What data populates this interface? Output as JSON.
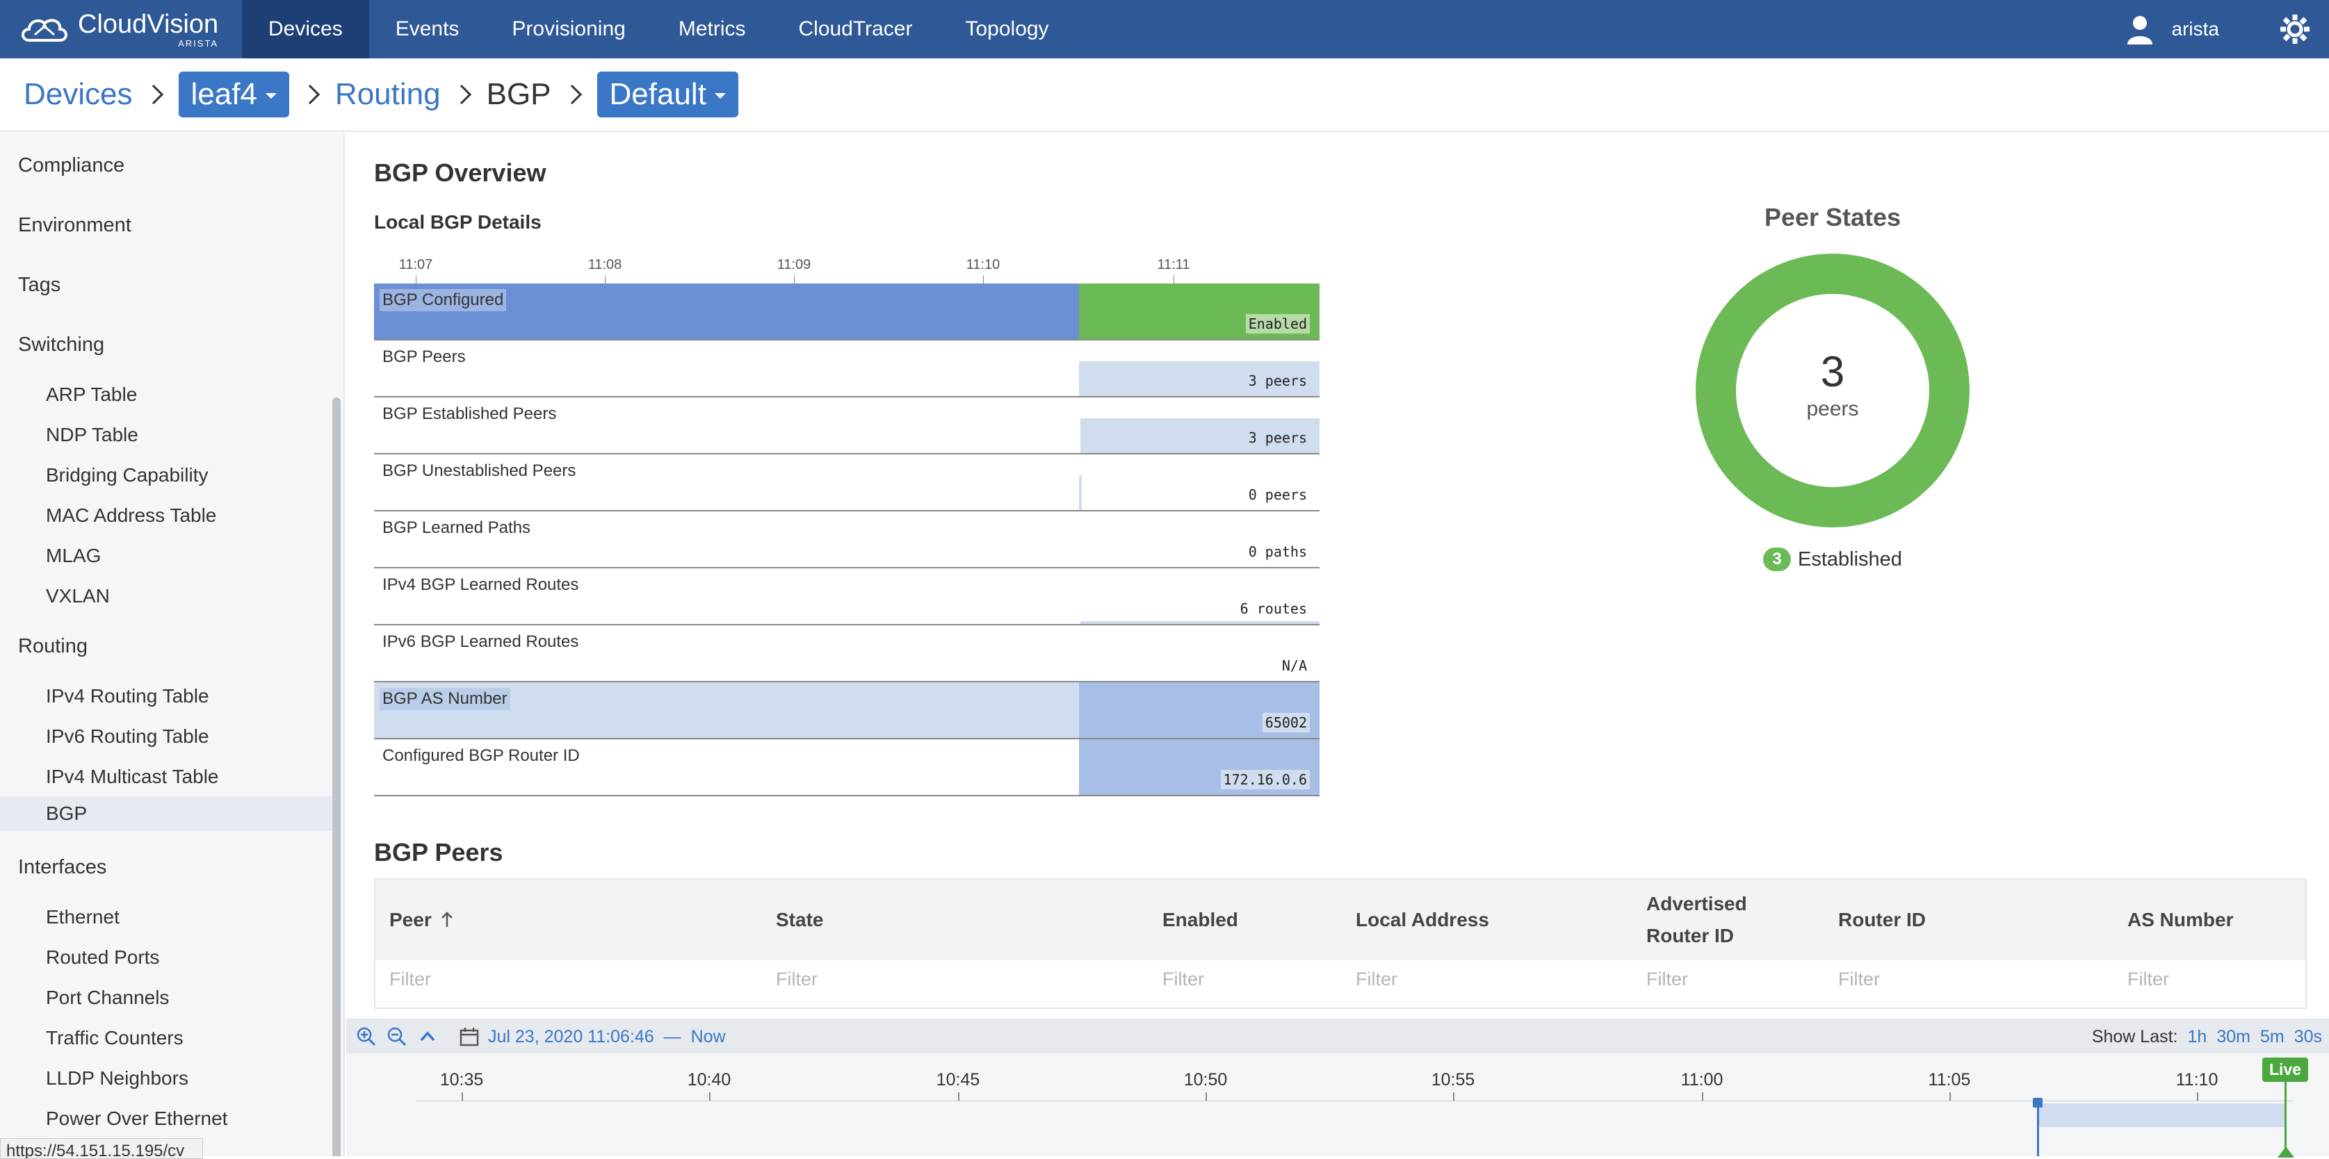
{
  "app": {
    "name": "CloudVision",
    "vendor": "ARISTA"
  },
  "nav": {
    "tabs": [
      "Devices",
      "Events",
      "Provisioning",
      "Metrics",
      "CloudTracer",
      "Topology"
    ],
    "active": "Devices",
    "user": "arista"
  },
  "breadcrumb": {
    "devices": "Devices",
    "device": "leaf4",
    "routing": "Routing",
    "bgp": "BGP",
    "vrf": "Default"
  },
  "sidebar": {
    "sections": [
      {
        "label": "Compliance"
      },
      {
        "label": "Environment"
      },
      {
        "label": "Tags"
      },
      {
        "label": "Switching",
        "items": [
          "ARP Table",
          "NDP Table",
          "Bridging Capability",
          "MAC Address Table",
          "MLAG",
          "VXLAN"
        ]
      },
      {
        "label": "Routing",
        "items": [
          "IPv4 Routing Table",
          "IPv6 Routing Table",
          "IPv4 Multicast Table",
          "BGP"
        ]
      },
      {
        "label": "Interfaces",
        "items": [
          "Ethernet",
          "Routed Ports",
          "Port Channels",
          "Traffic Counters",
          "LLDP Neighbors",
          "Power Over Ethernet"
        ]
      }
    ],
    "active_item": "BGP",
    "url_tooltip": "https://54.151.15.195/cv"
  },
  "overview": {
    "title": "BGP Overview",
    "local_title": "Local BGP Details",
    "time_ticks": [
      "11:07",
      "11:08",
      "11:09",
      "11:10",
      "11:11"
    ],
    "rows": [
      {
        "label": "BGP Configured",
        "value": "Enabled"
      },
      {
        "label": "BGP Peers",
        "value": "3 peers"
      },
      {
        "label": "BGP Established Peers",
        "value": "3 peers"
      },
      {
        "label": "BGP Unestablished Peers",
        "value": "0 peers"
      },
      {
        "label": "BGP Learned Paths",
        "value": "0 paths"
      },
      {
        "label": "IPv4 BGP Learned Routes",
        "value": "6 routes"
      },
      {
        "label": "IPv6 BGP Learned Routes",
        "value": "N/A"
      },
      {
        "label": "BGP AS Number",
        "value": "65002"
      },
      {
        "label": "Configured BGP Router ID",
        "value": "172.16.0.6"
      }
    ]
  },
  "peer_states": {
    "title": "Peer States",
    "count": "3",
    "unit": "peers",
    "legend_count": "3",
    "legend_label": "Established",
    "color": "#6cba55"
  },
  "peers_table": {
    "title": "BGP Peers",
    "columns": [
      "Peer",
      "State",
      "Enabled",
      "Local Address",
      "Advertised Router ID",
      "Router ID",
      "AS Number"
    ],
    "filter_placeholder": "Filter",
    "sort_column": "Peer"
  },
  "timeline": {
    "range_start": "Jul 23, 2020 11:06:46",
    "dash": "—",
    "range_end": "Now",
    "show_last_label": "Show Last:",
    "show_last_options": [
      "1h",
      "30m",
      "5m",
      "30s"
    ],
    "ticks": [
      "10:35",
      "10:40",
      "10:45",
      "10:50",
      "10:55",
      "11:00",
      "11:05",
      "11:10"
    ],
    "live_label": "Live"
  },
  "colors": {
    "nav": "#2f5897",
    "nav_active": "#1d3f75",
    "accent": "#3a77c6",
    "enabled": "#6cba55",
    "bar_blue": "#6a8fd4",
    "bar_light": "#d0ddef"
  }
}
